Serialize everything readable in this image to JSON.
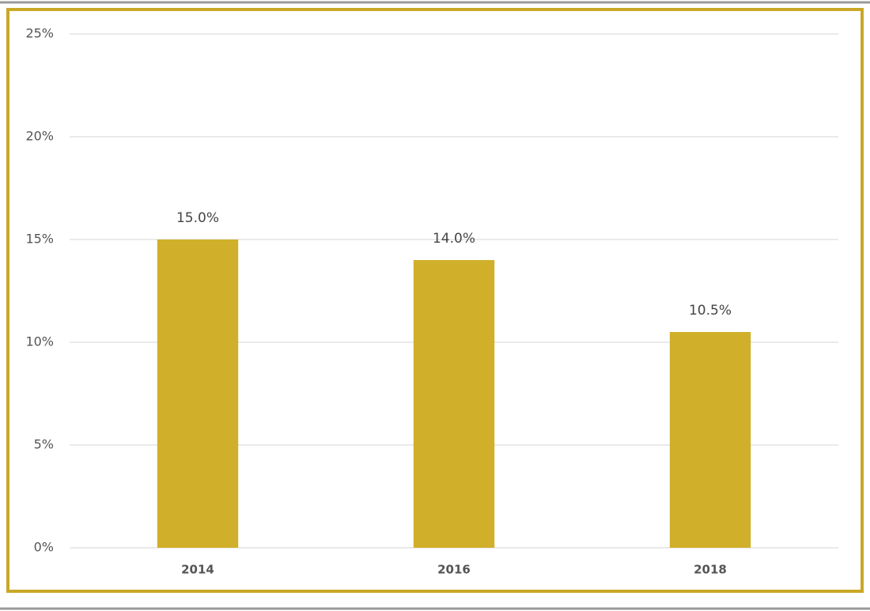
{
  "chart_data": {
    "type": "bar",
    "categories": [
      "2014",
      "2016",
      "2018"
    ],
    "values": [
      15,
      14,
      10.5
    ],
    "value_labels": [
      "15.0%",
      "14.0%",
      "10.5%"
    ],
    "color": "#d0b02a",
    "ylim": [
      0,
      25
    ],
    "yticks": [
      {
        "value": 0,
        "label": "0%"
      },
      {
        "value": 5,
        "label": "5%"
      },
      {
        "value": 10,
        "label": "10%"
      },
      {
        "value": 15,
        "label": "15%"
      },
      {
        "value": 20,
        "label": "20%"
      },
      {
        "value": 25,
        "label": "25%"
      }
    ],
    "grid": true
  }
}
